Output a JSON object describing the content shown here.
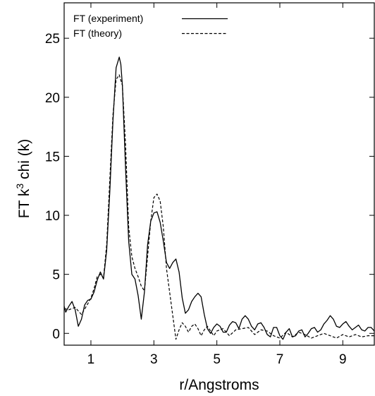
{
  "chart_data": {
    "type": "line",
    "title": "",
    "xlabel": "r/Angstroms",
    "ylabel_prefix": "FT k",
    "ylabel_superscript": "3",
    "ylabel_suffix": " chi (k)",
    "xlim": [
      0.15,
      10.0
    ],
    "ylim": [
      -1.0,
      28.0
    ],
    "xticks": [
      1,
      3,
      5,
      7,
      9
    ],
    "yticks": [
      0,
      5,
      10,
      15,
      20,
      25
    ],
    "grid": false,
    "legend_position": "top-left",
    "series": [
      {
        "name": "FT (experiment)",
        "style": "solid",
        "color": "#000000",
        "x": [
          0.15,
          0.2,
          0.3,
          0.4,
          0.5,
          0.6,
          0.7,
          0.8,
          0.9,
          1.0,
          1.1,
          1.2,
          1.3,
          1.4,
          1.5,
          1.6,
          1.7,
          1.8,
          1.9,
          1.95,
          2.0,
          2.1,
          2.2,
          2.3,
          2.4,
          2.5,
          2.6,
          2.7,
          2.8,
          2.9,
          3.0,
          3.1,
          3.2,
          3.3,
          3.4,
          3.5,
          3.6,
          3.7,
          3.8,
          3.9,
          4.0,
          4.1,
          4.2,
          4.3,
          4.4,
          4.5,
          4.6,
          4.7,
          4.8,
          4.9,
          5.0,
          5.1,
          5.2,
          5.3,
          5.4,
          5.5,
          5.6,
          5.7,
          5.8,
          5.9,
          6.0,
          6.1,
          6.2,
          6.3,
          6.4,
          6.5,
          6.6,
          6.7,
          6.8,
          6.9,
          7.0,
          7.1,
          7.2,
          7.3,
          7.4,
          7.5,
          7.6,
          7.7,
          7.8,
          7.9,
          8.0,
          8.1,
          8.2,
          8.3,
          8.4,
          8.5,
          8.6,
          8.7,
          8.8,
          8.9,
          9.0,
          9.1,
          9.2,
          9.3,
          9.4,
          9.5,
          9.6,
          9.7,
          9.8,
          9.9,
          10.0
        ],
        "y": [
          2.3,
          1.8,
          2.3,
          2.7,
          2.0,
          0.6,
          1.2,
          2.4,
          2.8,
          2.9,
          3.5,
          4.5,
          5.2,
          4.6,
          7.0,
          12.0,
          18.0,
          22.5,
          23.4,
          22.8,
          21.0,
          14.0,
          7.8,
          5.0,
          4.6,
          3.2,
          1.2,
          3.5,
          7.5,
          9.5,
          10.2,
          10.3,
          9.4,
          7.8,
          6.0,
          5.5,
          6.0,
          6.3,
          5.2,
          3.0,
          1.7,
          2.0,
          2.7,
          3.1,
          3.4,
          3.1,
          1.6,
          0.4,
          0.0,
          0.5,
          0.8,
          0.6,
          0.1,
          0.1,
          0.7,
          1.0,
          0.9,
          0.4,
          1.2,
          1.5,
          1.2,
          0.6,
          0.3,
          0.8,
          0.9,
          0.5,
          -0.1,
          -0.3,
          0.5,
          0.5,
          -0.2,
          -0.5,
          0.1,
          0.4,
          -0.3,
          -0.2,
          0.2,
          0.3,
          -0.3,
          0.0,
          0.4,
          0.5,
          0.1,
          0.3,
          0.8,
          1.1,
          1.5,
          1.2,
          0.6,
          0.5,
          0.8,
          1.0,
          0.6,
          0.3,
          0.5,
          0.7,
          0.3,
          0.2,
          0.5,
          0.5,
          0.2
        ]
      },
      {
        "name": "FT (theory)",
        "style": "dashed",
        "color": "#000000",
        "x": [
          0.15,
          0.3,
          0.5,
          0.7,
          0.9,
          1.0,
          1.1,
          1.2,
          1.3,
          1.4,
          1.5,
          1.6,
          1.7,
          1.8,
          1.9,
          2.0,
          2.1,
          2.2,
          2.3,
          2.4,
          2.5,
          2.6,
          2.7,
          2.8,
          2.9,
          3.0,
          3.1,
          3.2,
          3.3,
          3.4,
          3.5,
          3.6,
          3.65,
          3.7,
          3.8,
          3.9,
          4.0,
          4.1,
          4.2,
          4.3,
          4.4,
          4.5,
          4.6,
          4.7,
          4.8,
          4.9,
          5.0,
          5.2,
          5.4,
          5.6,
          5.8,
          6.0,
          6.2,
          6.4,
          6.6,
          6.8,
          7.0,
          7.2,
          7.4,
          7.6,
          7.8,
          8.0,
          8.2,
          8.4,
          8.6,
          8.8,
          9.0,
          9.2,
          9.4,
          9.6,
          9.8,
          10.0
        ],
        "y": [
          2.1,
          2.0,
          2.2,
          1.6,
          2.5,
          3.0,
          3.8,
          4.8,
          5.0,
          4.7,
          7.5,
          13.0,
          18.5,
          21.5,
          21.9,
          21.0,
          16.0,
          9.0,
          6.5,
          5.5,
          4.8,
          4.0,
          3.6,
          6.5,
          9.5,
          11.5,
          11.8,
          11.2,
          9.0,
          5.5,
          3.5,
          1.5,
          0.5,
          -0.5,
          0.3,
          0.9,
          0.6,
          0.1,
          0.6,
          0.8,
          0.4,
          -0.2,
          0.3,
          0.6,
          0.2,
          -0.2,
          0.2,
          0.4,
          -0.2,
          0.3,
          0.4,
          0.5,
          -0.1,
          0.3,
          0.2,
          -0.2,
          -0.4,
          0.1,
          -0.3,
          0.1,
          -0.1,
          -0.4,
          -0.2,
          0.0,
          -0.2,
          -0.4,
          -0.1,
          -0.3,
          -0.1,
          -0.3,
          -0.2,
          -0.2
        ]
      }
    ]
  }
}
